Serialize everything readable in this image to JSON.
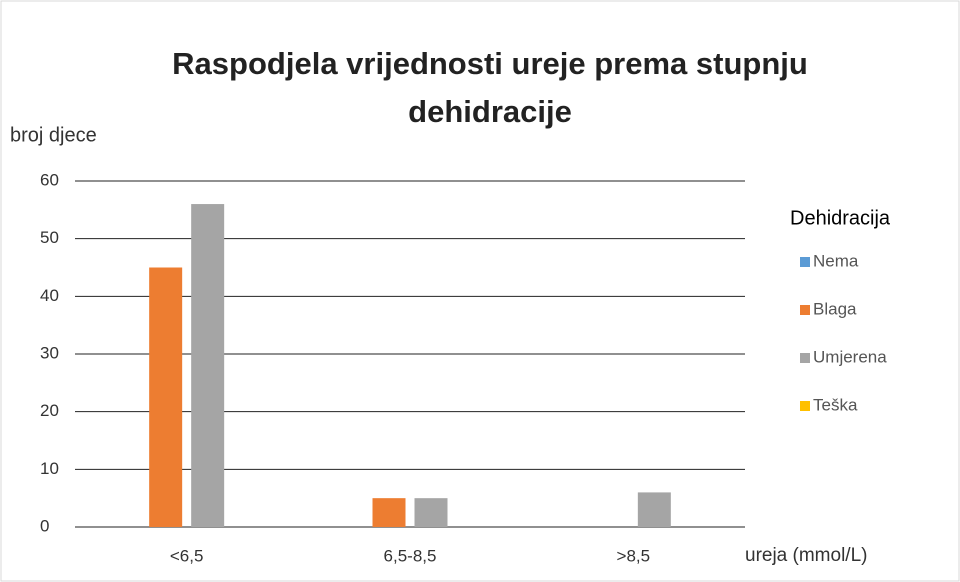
{
  "chart_data": {
    "type": "bar",
    "title": "Raspodjela vrijednosti ureje prema stupnju dehidracije",
    "y_label": "broj djece",
    "x_label": "ureja (mmol/L)",
    "legend_title": "Dehidracija",
    "legend": "right",
    "grid": true,
    "categories": [
      "<6,5",
      "6,5-8,5",
      ">8,5"
    ],
    "series": [
      {
        "name": "Nema",
        "color": "#5b9bd5",
        "values": [
          0,
          0,
          0
        ]
      },
      {
        "name": "Blaga",
        "color": "#ed7d31",
        "values": [
          45,
          5,
          0
        ]
      },
      {
        "name": "Umjerena",
        "color": "#a5a5a5",
        "values": [
          56,
          5,
          6
        ]
      },
      {
        "name": "Teška",
        "color": "#ffc000",
        "values": [
          0,
          0,
          0
        ]
      }
    ],
    "ylim": [
      0,
      60
    ],
    "yticks": [
      0,
      10,
      20,
      30,
      40,
      50,
      60
    ]
  }
}
